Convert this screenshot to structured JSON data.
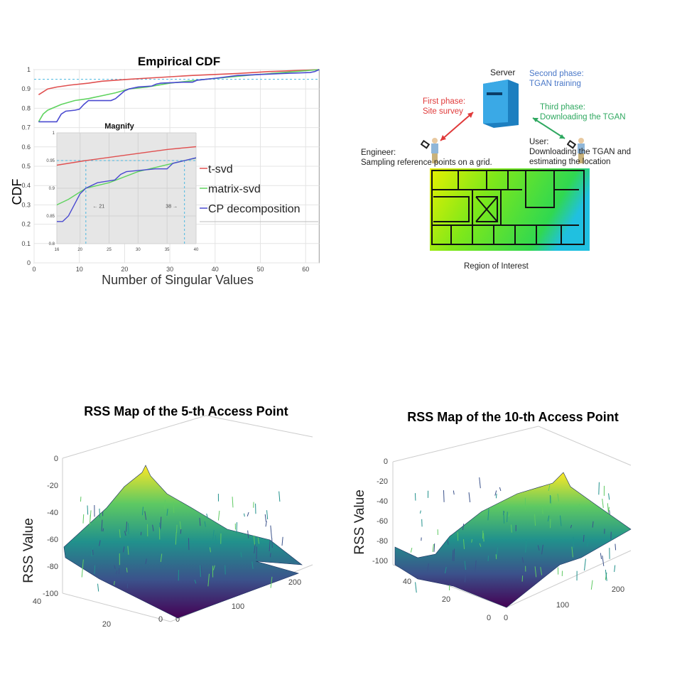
{
  "chart_data": [
    {
      "type": "line",
      "title": "Empirical CDF",
      "xlabel": "Number of Singular Values",
      "ylabel": "CDF",
      "xlim": [
        0,
        63
      ],
      "ylim": [
        0,
        1
      ],
      "xticks": [
        "0",
        "10",
        "20",
        "30",
        "40",
        "50",
        "60"
      ],
      "yticks": [
        "0",
        "0.1",
        "0.2",
        "0.3",
        "0.4",
        "0.5",
        "0.6",
        "0.7",
        "0.8",
        "0.9",
        "1"
      ],
      "grid": true,
      "legend_position": "right",
      "reference_line": 0.95,
      "series": [
        {
          "name": "t-svd",
          "color": "#e05050",
          "x": [
            1,
            2,
            3,
            5,
            8,
            12,
            15,
            21,
            28,
            35,
            45,
            52,
            63
          ],
          "y": [
            0.87,
            0.885,
            0.9,
            0.91,
            0.92,
            0.93,
            0.94,
            0.95,
            0.96,
            0.97,
            0.98,
            0.99,
            1.0
          ]
        },
        {
          "name": "matrix-svd",
          "color": "#5fd35f",
          "x": [
            1,
            2,
            3,
            6,
            9,
            12,
            15,
            18,
            21,
            25,
            30,
            38,
            47,
            55,
            63
          ],
          "y": [
            0.73,
            0.77,
            0.79,
            0.82,
            0.84,
            0.85,
            0.865,
            0.88,
            0.9,
            0.91,
            0.93,
            0.95,
            0.97,
            0.985,
            1.0
          ]
        },
        {
          "name": "CP decomposition",
          "color": "#4a4ad0",
          "x": [
            1,
            5,
            6,
            7,
            9,
            10,
            11,
            12,
            17,
            18,
            19,
            20,
            21,
            23,
            26,
            27,
            28,
            33,
            35,
            36,
            38,
            40,
            45,
            50,
            55,
            61,
            62,
            63
          ],
          "y": [
            0.73,
            0.73,
            0.77,
            0.785,
            0.79,
            0.795,
            0.82,
            0.84,
            0.84,
            0.85,
            0.87,
            0.89,
            0.9,
            0.91,
            0.915,
            0.925,
            0.93,
            0.935,
            0.935,
            0.945,
            0.95,
            0.955,
            0.97,
            0.975,
            0.98,
            0.985,
            0.99,
            1.0
          ]
        }
      ],
      "inset": {
        "title": "Magnify",
        "xlim": [
          16,
          40
        ],
        "ylim": [
          0.8,
          1
        ],
        "xticks": [
          "16",
          "20",
          "25",
          "30",
          "35",
          "40"
        ],
        "yticks": [
          "0.8",
          "0.85",
          "0.9",
          "0.95",
          "1"
        ],
        "annotations": [
          "← 21",
          "38 →"
        ],
        "markers_x": [
          21,
          38
        ]
      }
    },
    {
      "type": "surface",
      "title": "RSS Map of the 5-th Access Point",
      "zlabel": "RSS Value",
      "zticks": [
        "0",
        "-20",
        "-40",
        "-60",
        "-80",
        "-100"
      ],
      "yticks": [
        "40",
        "20",
        "0"
      ],
      "xticks": [
        "0",
        "100",
        "200"
      ],
      "zlim": [
        -100,
        0
      ]
    },
    {
      "type": "surface",
      "title": "RSS Map of the 10-th Access Point",
      "zlabel": "RSS Value",
      "zticks": [
        "0",
        "-20",
        "-40",
        "-60",
        "-80",
        "-100"
      ],
      "yticks": [
        "40",
        "20",
        "0"
      ],
      "xticks": [
        "0",
        "100",
        "200"
      ],
      "zlim": [
        -100,
        0
      ]
    }
  ],
  "diagram": {
    "server": "Server",
    "phase1": [
      "First phase:",
      "Site survey"
    ],
    "phase2": [
      "Second phase:",
      "TGAN training"
    ],
    "phase3": [
      "Third phase:",
      "Downloading the TGAN"
    ],
    "engineer": [
      "Engineer:",
      "Sampling reference points on a grid."
    ],
    "user": [
      "User:",
      "Downloading the TGAN and",
      "estimating the location"
    ],
    "region": "Region of Interest",
    "colors": {
      "phase1": "#e03a3a",
      "phase2": "#4a78c8",
      "phase3": "#2fa860",
      "server": "#2e9ad6"
    }
  }
}
